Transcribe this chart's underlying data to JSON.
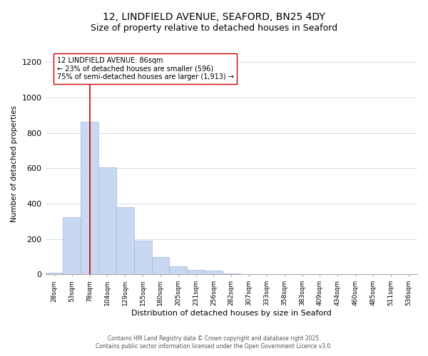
{
  "title": "12, LINDFIELD AVENUE, SEAFORD, BN25 4DY",
  "subtitle": "Size of property relative to detached houses in Seaford",
  "xlabel": "Distribution of detached houses by size in Seaford",
  "ylabel": "Number of detached properties",
  "bar_values": [
    10,
    325,
    865,
    605,
    380,
    190,
    100,
    45,
    25,
    20,
    5,
    0,
    0,
    0,
    0,
    0,
    0,
    0,
    0,
    0,
    0
  ],
  "bar_labels": [
    "28sqm",
    "53sqm",
    "78sqm",
    "104sqm",
    "129sqm",
    "155sqm",
    "180sqm",
    "205sqm",
    "231sqm",
    "256sqm",
    "282sqm",
    "307sqm",
    "333sqm",
    "358sqm",
    "383sqm",
    "409sqm",
    "434sqm",
    "460sqm",
    "485sqm",
    "511sqm",
    "536sqm"
  ],
  "bar_color": "#c8d8f0",
  "bar_edge_color": "#a0b8e0",
  "vline_x": 2,
  "vline_color": "#cc0000",
  "annotation_box_text": "12 LINDFIELD AVENUE: 86sqm\n← 23% of detached houses are smaller (596)\n75% of semi-detached houses are larger (1,913) →",
  "ylim": [
    0,
    1250
  ],
  "yticks": [
    0,
    200,
    400,
    600,
    800,
    1000,
    1200
  ],
  "background_color": "#ffffff",
  "footer_line1": "Contains HM Land Registry data © Crown copyright and database right 2025.",
  "footer_line2": "Contains public sector information licensed under the Open Government Licence v3.0.",
  "grid_color": "#d0dce8",
  "title_fontsize": 10,
  "subtitle_fontsize": 9
}
